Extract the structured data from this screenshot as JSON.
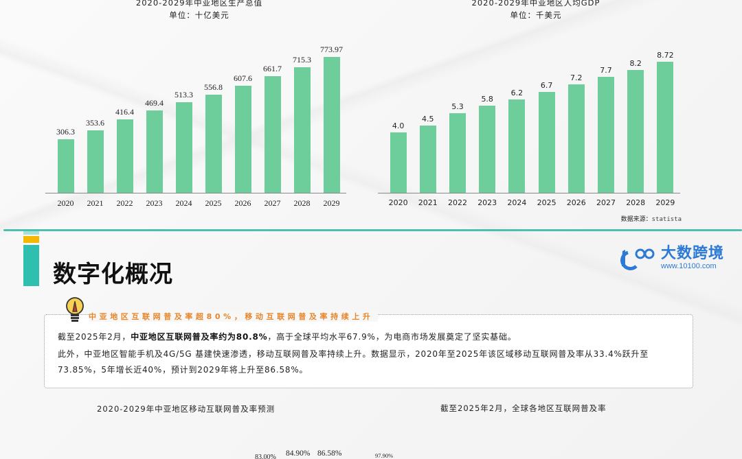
{
  "chart_data": [
    {
      "type": "bar",
      "title": "2020-2029年中亚地区生产总值",
      "subtitle": "单位：十亿美元",
      "categories": [
        "2020",
        "2021",
        "2022",
        "2023",
        "2024",
        "2025",
        "2026",
        "2027",
        "2028",
        "2029"
      ],
      "values": [
        306.3,
        353.6,
        416.4,
        469.4,
        513.3,
        556.8,
        607.6,
        661.7,
        715.3,
        773.97
      ],
      "value_labels": [
        "306.3",
        "353.6",
        "416.4",
        "469.4",
        "513.3",
        "556.8",
        "607.6",
        "661.7",
        "715.3",
        "773.97"
      ],
      "xlabel": "",
      "ylabel": "",
      "ylim": [
        0,
        800
      ],
      "grid": false,
      "bar_color": "#6dce9b"
    },
    {
      "type": "bar",
      "title": "2020-2029年中亚地区人均GDP",
      "subtitle": "单位：千美元",
      "categories": [
        "2020",
        "2021",
        "2022",
        "2023",
        "2024",
        "2025",
        "2026",
        "2027",
        "2028",
        "2029"
      ],
      "values": [
        4.0,
        4.5,
        5.3,
        5.8,
        6.2,
        6.7,
        7.2,
        7.7,
        8.2,
        8.72
      ],
      "value_labels": [
        "4.0",
        "4.5",
        "5.3",
        "5.8",
        "6.2",
        "6.7",
        "7.2",
        "7.7",
        "8.2",
        "8.72"
      ],
      "xlabel": "",
      "ylabel": "",
      "ylim": [
        0,
        9
      ],
      "grid": false,
      "bar_color": "#6dce9b",
      "source": "数据来源：statista"
    },
    {
      "type": "bar",
      "title": "2020-2029年中亚地区移动互联网普及率预测",
      "partial": true,
      "visible_value_labels": [
        "83.00%",
        "84.90%",
        "86.58%"
      ]
    },
    {
      "type": "bar",
      "title": "截至2025年2月，全球各地区互联网普及率",
      "partial": true,
      "visible_value_labels": [
        "97.90%"
      ]
    }
  ],
  "source_note": {
    "label": "数据来源：",
    "value": "statista"
  },
  "section": {
    "title": "数字化概况",
    "logo": {
      "name": "大数跨境",
      "url": "www.10100.com"
    }
  },
  "highlight": {
    "headline": "中亚地区互联网普及率超80%，移动互联网普及率持续上升",
    "lines": [
      {
        "pre": "截至2025年2月，",
        "bold": "中亚地区互联网普及率约为80.8%",
        "post": "，高于全球平均水平67.9%，为电商市场发展奠定了坚实基础。"
      },
      {
        "pre": "此外，中亚地区智能手机及4G/5G 基建快速渗透，移动互联网普及率持续上升。数据显示，2020年至2025年该区域移动互联网普及率从33.4%跃升至",
        "bold": "",
        "post": ""
      },
      {
        "pre": "73.85%，5年增长近40%，预计到2029年将上升至86.58%。",
        "bold": "",
        "post": ""
      }
    ]
  },
  "colors": {
    "bar": "#6dce9b",
    "accent_teal": "#2fbfae",
    "accent_yellow": "#f5b800",
    "headline_orange": "#e8852a",
    "logo_blue": "#2d7ad6"
  }
}
